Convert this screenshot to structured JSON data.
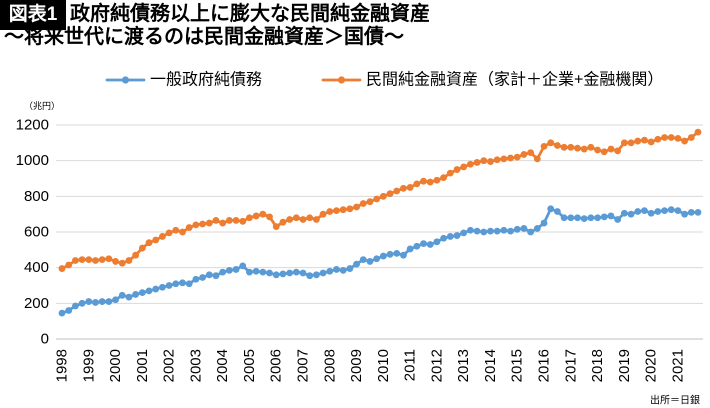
{
  "chart_data": {
    "type": "line",
    "figure_label": "図表1",
    "title": "政府純債務以上に膨大な民間純金融資産",
    "subtitle": "〜将来世代に渡るのは民間金融資産＞国債〜",
    "ylabel": "（兆円）",
    "source": "出所＝日銀",
    "ylim": [
      0,
      1200
    ],
    "yticks": [
      0,
      200,
      400,
      600,
      800,
      1000,
      1200
    ],
    "grid": true,
    "legend_position": "top",
    "markers": true,
    "x_ticks": [
      "1998",
      "1999",
      "2000",
      "2001",
      "2002",
      "2003",
      "2004",
      "2005",
      "2006",
      "2007",
      "2008",
      "2009",
      "2010",
      "2011",
      "2012",
      "2013",
      "2014",
      "2015",
      "2016",
      "2017",
      "2018",
      "2019",
      "2020",
      "2021"
    ],
    "x": [
      "1998-03",
      "1998-06",
      "1998-09",
      "1998-12",
      "1999-03",
      "1999-06",
      "1999-09",
      "1999-12",
      "2000-03",
      "2000-06",
      "2000-09",
      "2000-12",
      "2001-03",
      "2001-06",
      "2001-09",
      "2001-12",
      "2002-03",
      "2002-06",
      "2002-09",
      "2002-12",
      "2003-03",
      "2003-06",
      "2003-09",
      "2003-12",
      "2004-03",
      "2004-06",
      "2004-09",
      "2004-12",
      "2005-03",
      "2005-06",
      "2005-09",
      "2005-12",
      "2006-03",
      "2006-06",
      "2006-09",
      "2006-12",
      "2007-03",
      "2007-06",
      "2007-09",
      "2007-12",
      "2008-03",
      "2008-06",
      "2008-09",
      "2008-12",
      "2009-03",
      "2009-06",
      "2009-09",
      "2009-12",
      "2010-03",
      "2010-06",
      "2010-09",
      "2010-12",
      "2011-03",
      "2011-06",
      "2011-09",
      "2011-12",
      "2012-03",
      "2012-06",
      "2012-09",
      "2012-12",
      "2013-03",
      "2013-06",
      "2013-09",
      "2013-12",
      "2014-03",
      "2014-06",
      "2014-09",
      "2014-12",
      "2015-03",
      "2015-06",
      "2015-09",
      "2015-12",
      "2016-03",
      "2016-06",
      "2016-09",
      "2016-12",
      "2017-03",
      "2017-06",
      "2017-09",
      "2017-12",
      "2018-03",
      "2018-06",
      "2018-09",
      "2018-12",
      "2019-03",
      "2019-06",
      "2019-09",
      "2019-12",
      "2020-03",
      "2020-06",
      "2020-09",
      "2020-12",
      "2021-03",
      "2021-06",
      "2021-09",
      "2021-12"
    ],
    "series": [
      {
        "name": "一般政府純債務",
        "color": "#5B9BD5",
        "values": [
          145,
          160,
          185,
          200,
          210,
          205,
          210,
          210,
          220,
          245,
          235,
          250,
          260,
          270,
          280,
          290,
          300,
          310,
          315,
          310,
          335,
          345,
          360,
          355,
          375,
          385,
          390,
          410,
          375,
          380,
          375,
          370,
          360,
          365,
          370,
          375,
          370,
          355,
          360,
          370,
          380,
          390,
          385,
          395,
          420,
          445,
          435,
          450,
          465,
          475,
          480,
          470,
          505,
          520,
          535,
          530,
          545,
          565,
          575,
          580,
          595,
          610,
          605,
          600,
          605,
          605,
          610,
          605,
          615,
          620,
          600,
          620,
          650,
          730,
          715,
          680,
          680,
          680,
          675,
          680,
          680,
          685,
          690,
          670,
          705,
          700,
          715,
          720,
          705,
          715,
          720,
          725,
          720,
          700,
          710,
          710
        ]
      },
      {
        "name": "民間純金融資産（家計＋企業+金融機関）",
        "color": "#ED7D31",
        "values": [
          395,
          415,
          440,
          445,
          445,
          440,
          445,
          450,
          435,
          425,
          440,
          470,
          510,
          540,
          555,
          575,
          595,
          610,
          600,
          625,
          640,
          645,
          650,
          665,
          650,
          665,
          665,
          660,
          680,
          690,
          700,
          685,
          630,
          655,
          670,
          680,
          670,
          680,
          670,
          700,
          715,
          720,
          725,
          730,
          740,
          760,
          770,
          785,
          800,
          815,
          830,
          845,
          850,
          870,
          885,
          880,
          890,
          905,
          930,
          950,
          965,
          980,
          990,
          1000,
          995,
          1005,
          1010,
          1015,
          1020,
          1035,
          1045,
          1010,
          1080,
          1100,
          1085,
          1075,
          1075,
          1070,
          1065,
          1075,
          1060,
          1050,
          1065,
          1055,
          1100,
          1100,
          1110,
          1115,
          1105,
          1120,
          1130,
          1130,
          1125,
          1110,
          1130,
          1160
        ]
      }
    ]
  },
  "colors": {
    "badge_background": "#000000",
    "badge_text": "#ffffff",
    "gridline": "#d9d9d9",
    "axis_line": "#bfbfbf"
  }
}
